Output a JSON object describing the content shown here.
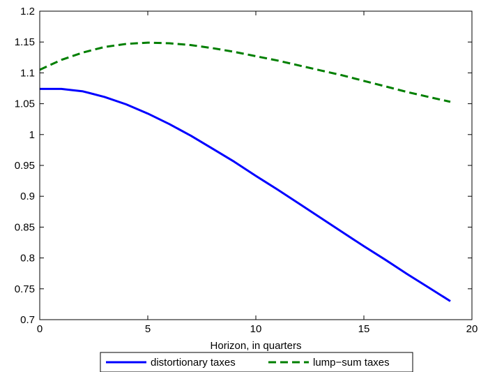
{
  "chart_data": {
    "type": "line",
    "title": "",
    "xlabel": "Horizon, in quarters",
    "ylabel": "",
    "xlim": [
      0,
      20
    ],
    "ylim": [
      0.7,
      1.2
    ],
    "xticks": [
      0,
      5,
      10,
      15,
      20
    ],
    "xtick_labels": [
      "0",
      "5",
      "10",
      "15",
      "20"
    ],
    "yticks": [
      0.7,
      0.75,
      0.8,
      0.85,
      0.9,
      0.95,
      1.0,
      1.05,
      1.1,
      1.15,
      1.2
    ],
    "ytick_labels": [
      "0.7",
      "0.75",
      "0.8",
      "0.85",
      "0.9",
      "0.95",
      "1",
      "1.05",
      "1.1",
      "1.15",
      "1.2"
    ],
    "grid": false,
    "legend_position": "bottom-outside",
    "series": [
      {
        "name": "distortionary taxes",
        "color": "#0000ff",
        "style": "solid",
        "x": [
          0,
          1,
          2,
          3,
          4,
          5,
          6,
          7,
          8,
          9,
          10,
          11,
          12,
          13,
          14,
          15,
          16,
          17,
          18,
          19
        ],
        "values": [
          1.074,
          1.074,
          1.07,
          1.061,
          1.049,
          1.034,
          1.017,
          0.998,
          0.977,
          0.956,
          0.933,
          0.911,
          0.888,
          0.865,
          0.842,
          0.819,
          0.797,
          0.774,
          0.752,
          0.73
        ]
      },
      {
        "name": "lump−sum taxes",
        "color": "#007f00",
        "style": "dashed",
        "x": [
          0,
          1,
          2,
          3,
          4,
          5,
          6,
          7,
          8,
          9,
          10,
          11,
          12,
          13,
          14,
          15,
          16,
          17,
          18,
          19
        ],
        "values": [
          1.105,
          1.121,
          1.133,
          1.142,
          1.147,
          1.149,
          1.148,
          1.145,
          1.14,
          1.134,
          1.127,
          1.12,
          1.112,
          1.104,
          1.096,
          1.087,
          1.078,
          1.069,
          1.061,
          1.053
        ]
      }
    ]
  }
}
